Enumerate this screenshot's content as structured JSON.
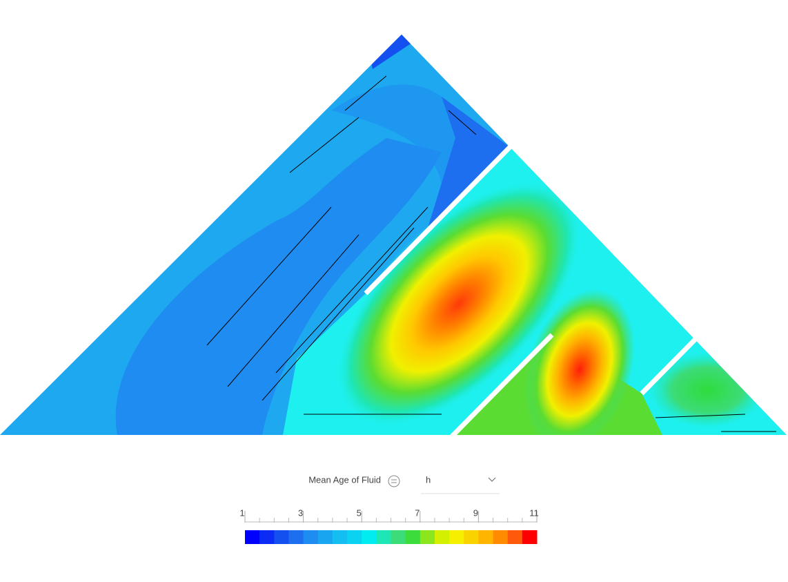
{
  "legend": {
    "title": "Mean Age of Fluid",
    "unit": "h",
    "range": [
      1,
      11
    ],
    "ticks": [
      1,
      3,
      5,
      7,
      9,
      11
    ],
    "colors": [
      "#0000ff",
      "#0a2cf5",
      "#1450f0",
      "#1e6ef0",
      "#1e8cf0",
      "#1aa5f0",
      "#14bef0",
      "#0ad2f0",
      "#00ecf0",
      "#1ee6b4",
      "#3cdc78",
      "#3cdc3c",
      "#8ce61e",
      "#d2f000",
      "#f5f000",
      "#fad200",
      "#ffb400",
      "#ff8c00",
      "#ff5a0a",
      "#ff0000"
    ]
  }
}
